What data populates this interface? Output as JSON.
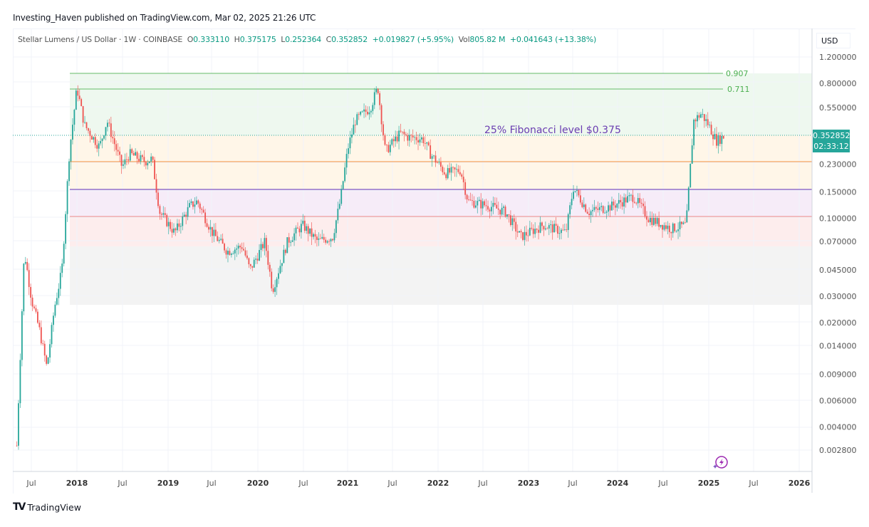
{
  "header": {
    "published": "Investing_Haven published on TradingView.com, Mar 02, 2025 21:26 UTC"
  },
  "legend": {
    "symbol": "Stellar Lumens / US Dollar · 1W · COINBASE",
    "open_label": "O",
    "open": "0.333110",
    "high_label": "H",
    "high": "0.375175",
    "low_label": "L",
    "low": "0.252364",
    "close_label": "C",
    "close": "0.352852",
    "change": "+0.019827 (+5.95%)",
    "vol_label": "Vol",
    "vol": "805.82 M",
    "vol_change": "+0.041643 (+13.38%)"
  },
  "price_axis": {
    "currency": "USD",
    "ticks": [
      "1.200000",
      "0.800000",
      "0.550000",
      "0.230000",
      "0.150000",
      "0.100000",
      "0.070000",
      "0.045000",
      "0.030000",
      "0.020000",
      "0.014000",
      "0.009000",
      "0.006000",
      "0.004000",
      "0.002800"
    ],
    "current_price": "0.352852",
    "countdown": "02:33:12"
  },
  "time_axis": {
    "ticks": [
      "Jul",
      "2018",
      "Jul",
      "2019",
      "Jul",
      "2020",
      "Jul",
      "2021",
      "Jul",
      "2022",
      "Jul",
      "2023",
      "Jul",
      "2024",
      "Jul",
      "2025",
      "Jul",
      "2026"
    ]
  },
  "annotations": {
    "fib_note": "25% Fibonacci level $0.375",
    "fib_907": "0.907",
    "fib_711": "0.711"
  },
  "footer": {
    "brand": "TradingView"
  },
  "colors": {
    "up": "#26a69a",
    "down": "#ef5350",
    "fib_green": "#66bb6a",
    "fib_orange": "#f7a35c",
    "fib_purple": "#7e57c2",
    "fib_red": "#ef9a9a",
    "annotation_purple": "#6a3db1"
  },
  "chart_data": {
    "type": "candlestick",
    "title": "Stellar Lumens / US Dollar · 1W · COINBASE",
    "xlabel": "",
    "ylabel": "USD",
    "yscale": "log",
    "ylim": [
      0.0025,
      1.3
    ],
    "grid": true,
    "x_ticks": [
      "Jul 2017",
      "2018",
      "Jul 2018",
      "2019",
      "Jul 2019",
      "2020",
      "Jul 2020",
      "2021",
      "Jul 2021",
      "2022",
      "Jul 2022",
      "2023",
      "Jul 2023",
      "2024",
      "Jul 2024",
      "2025",
      "Jul 2025",
      "2026"
    ],
    "y_ticks": [
      1.2,
      0.8,
      0.55,
      0.23,
      0.15,
      0.1,
      0.07,
      0.045,
      0.03,
      0.02,
      0.014,
      0.009,
      0.006,
      0.004,
      0.0028
    ],
    "last": {
      "open": 0.33311,
      "high": 0.375175,
      "low": 0.252364,
      "close": 0.352852,
      "change": 0.019827,
      "change_pct": 5.95
    },
    "horizontal_levels": [
      {
        "label": "0.907",
        "value": 0.907,
        "color": "green"
      },
      {
        "label": "0.711",
        "value": 0.711,
        "color": "green"
      },
      {
        "label": "current",
        "value": 0.352852,
        "style": "dotted"
      },
      {
        "label": "orange level",
        "value": 0.23,
        "color": "orange"
      },
      {
        "label": "purple level",
        "value": 0.155,
        "color": "purple"
      },
      {
        "label": "red level",
        "value": 0.1,
        "color": "red"
      }
    ],
    "zones": [
      {
        "from": 0.375,
        "to": 0.907,
        "color": "light green"
      },
      {
        "from": 0.155,
        "to": 0.375,
        "color": "light orange"
      },
      {
        "from": 0.1,
        "to": 0.155,
        "color": "light purple"
      },
      {
        "from": 0.065,
        "to": 0.1,
        "color": "light red"
      },
      {
        "from": 0.027,
        "to": 0.065,
        "color": "light gray"
      }
    ],
    "annotation": "25% Fibonacci level $0.375",
    "approx_weekly_closes": [
      {
        "date": "2017-05",
        "close": 0.003
      },
      {
        "date": "2017-06",
        "close": 0.06
      },
      {
        "date": "2017-07",
        "close": 0.028
      },
      {
        "date": "2017-08",
        "close": 0.018
      },
      {
        "date": "2017-09",
        "close": 0.01
      },
      {
        "date": "2017-10",
        "close": 0.025
      },
      {
        "date": "2017-11",
        "close": 0.045
      },
      {
        "date": "2017-12",
        "close": 0.28
      },
      {
        "date": "2018-01",
        "close": 0.75
      },
      {
        "date": "2018-02",
        "close": 0.42
      },
      {
        "date": "2018-04",
        "close": 0.3
      },
      {
        "date": "2018-05",
        "close": 0.45
      },
      {
        "date": "2018-07",
        "close": 0.22
      },
      {
        "date": "2018-08",
        "close": 0.27
      },
      {
        "date": "2018-10",
        "close": 0.24
      },
      {
        "date": "2018-11",
        "close": 0.25
      },
      {
        "date": "2018-12",
        "close": 0.11
      },
      {
        "date": "2019-02",
        "close": 0.08
      },
      {
        "date": "2019-04",
        "close": 0.12
      },
      {
        "date": "2019-05",
        "close": 0.13
      },
      {
        "date": "2019-07",
        "close": 0.08
      },
      {
        "date": "2019-09",
        "close": 0.06
      },
      {
        "date": "2019-11",
        "close": 0.065
      },
      {
        "date": "2019-12",
        "close": 0.045
      },
      {
        "date": "2020-02",
        "close": 0.07
      },
      {
        "date": "2020-03",
        "close": 0.033
      },
      {
        "date": "2020-05",
        "close": 0.07
      },
      {
        "date": "2020-07",
        "close": 0.09
      },
      {
        "date": "2020-09",
        "close": 0.07
      },
      {
        "date": "2020-11",
        "close": 0.075
      },
      {
        "date": "2020-12",
        "close": 0.13
      },
      {
        "date": "2021-01",
        "close": 0.29
      },
      {
        "date": "2021-02",
        "close": 0.45
      },
      {
        "date": "2021-04",
        "close": 0.55
      },
      {
        "date": "2021-05",
        "close": 0.75
      },
      {
        "date": "2021-06",
        "close": 0.28
      },
      {
        "date": "2021-08",
        "close": 0.37
      },
      {
        "date": "2021-09",
        "close": 0.35
      },
      {
        "date": "2021-11",
        "close": 0.34
      },
      {
        "date": "2021-12",
        "close": 0.27
      },
      {
        "date": "2022-02",
        "close": 0.2
      },
      {
        "date": "2022-04",
        "close": 0.21
      },
      {
        "date": "2022-05",
        "close": 0.13
      },
      {
        "date": "2022-08",
        "close": 0.12
      },
      {
        "date": "2022-10",
        "close": 0.11
      },
      {
        "date": "2022-12",
        "close": 0.075
      },
      {
        "date": "2023-03",
        "close": 0.09
      },
      {
        "date": "2023-06",
        "close": 0.08
      },
      {
        "date": "2023-07",
        "close": 0.16
      },
      {
        "date": "2023-09",
        "close": 0.11
      },
      {
        "date": "2023-12",
        "close": 0.12
      },
      {
        "date": "2024-03",
        "close": 0.14
      },
      {
        "date": "2024-05",
        "close": 0.1
      },
      {
        "date": "2024-08",
        "close": 0.085
      },
      {
        "date": "2024-10",
        "close": 0.09
      },
      {
        "date": "2024-11",
        "close": 0.45
      },
      {
        "date": "2024-12",
        "close": 0.5
      },
      {
        "date": "2025-01",
        "close": 0.42
      },
      {
        "date": "2025-02",
        "close": 0.33
      },
      {
        "date": "2025-03",
        "close": 0.352852
      }
    ]
  }
}
